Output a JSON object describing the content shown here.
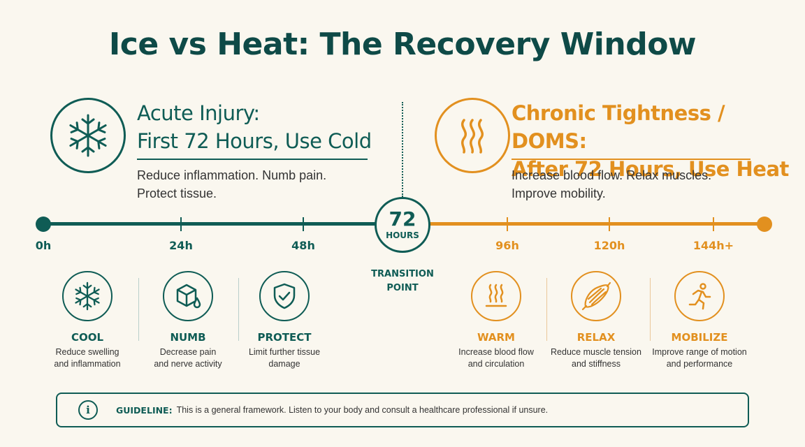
{
  "title": "Ice vs Heat: The Recovery Window",
  "colors": {
    "cold": "#0F5C55",
    "heat": "#E2901F",
    "background": "#FAF7EF"
  },
  "cold_section": {
    "icon": "snowflake-icon",
    "heading_line1": "Acute Injury:",
    "heading_line2": "First 72 Hours, Use Cold",
    "desc_line1": "Reduce inflammation. Numb pain.",
    "desc_line2": "Protect tissue."
  },
  "heat_section": {
    "icon": "heat-waves-icon",
    "heading_line1": "Chronic Tightness / DOMS:",
    "heading_line2": "After 72 Hours, Use Heat",
    "desc_line1": "Increase blood flow. Relax muscles.",
    "desc_line2": "Improve mobility."
  },
  "timeline": {
    "ticks": [
      "0h",
      "24h",
      "48h",
      "96h",
      "120h",
      "144h+"
    ],
    "center_value": "72",
    "center_unit": "HOURS",
    "transition_line1": "TRANSITION",
    "transition_line2": "POINT"
  },
  "cards": [
    {
      "icon": "snowflake-icon",
      "label": "COOL",
      "desc_line1": "Reduce swelling",
      "desc_line2": "and inflammation"
    },
    {
      "icon": "cube-drop-icon",
      "label": "NUMB",
      "desc_line1": "Decrease pain",
      "desc_line2": "and nerve activity"
    },
    {
      "icon": "shield-check-icon",
      "label": "PROTECT",
      "desc_line1": "Limit further tissue",
      "desc_line2": "damage"
    },
    {
      "icon": "heat-waves-icon",
      "label": "WARM",
      "desc_line1": "Increase blood flow",
      "desc_line2": "and circulation"
    },
    {
      "icon": "muscle-icon",
      "label": "RELAX",
      "desc_line1": "Reduce muscle tension",
      "desc_line2": "and stiffness"
    },
    {
      "icon": "running-person-icon",
      "label": "MOBILIZE",
      "desc_line1": "Improve range of motion",
      "desc_line2": "and performance"
    }
  ],
  "guideline": {
    "icon": "info-icon",
    "label": "GUIDELINE:",
    "text": "This is a general framework. Listen to your body and consult a healthcare professional if unsure."
  }
}
